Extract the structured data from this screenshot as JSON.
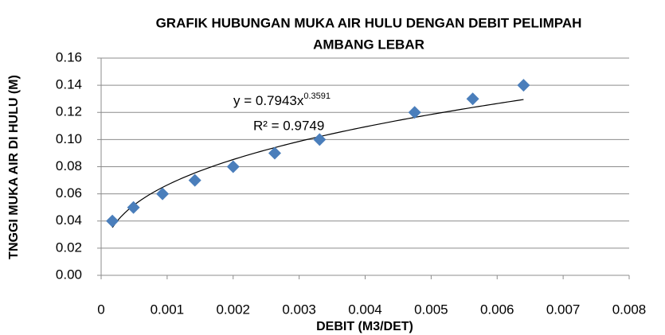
{
  "chart_data": {
    "type": "scatter",
    "title": [
      "GRAFIK HUBUNGAN MUKA AIR HULU DENGAN DEBIT PELIMPAH",
      "AMBANG LEBAR"
    ],
    "x_label": "DEBIT (M3/DET)",
    "y_label": "TNGGI MUKA AIR DI HULU (M)",
    "x": [
      0.00017,
      0.00049,
      0.00093,
      0.00142,
      0.002,
      0.00263,
      0.00331,
      0.00475,
      0.00563,
      0.0064
    ],
    "values": [
      0.04,
      0.05,
      0.06,
      0.07,
      0.08,
      0.09,
      0.1,
      0.12,
      0.13,
      0.14
    ],
    "color": "#4a7ebb",
    "xlim": [
      0,
      0.008
    ],
    "xticks": [
      0,
      0.001,
      0.002,
      0.003,
      0.004,
      0.005,
      0.006,
      0.007,
      0.008
    ],
    "ylim": [
      0,
      0.16
    ],
    "yticks": [
      {
        "value": 0,
        "label": "0.00"
      },
      {
        "value": 0.02,
        "label": "0.02"
      },
      {
        "value": 0.04,
        "label": "0.04"
      },
      {
        "value": 0.06,
        "label": "0.06"
      },
      {
        "value": 0.08,
        "label": "0.08"
      },
      {
        "value": 0.1,
        "label": "0.10"
      },
      {
        "value": 0.12,
        "label": "0.12"
      },
      {
        "value": 0.14,
        "label": "0.14"
      },
      {
        "value": 0.16,
        "label": "0.16"
      }
    ],
    "grid": true,
    "trendline": {
      "coefficient": 0.7943,
      "exponent": 0.3591,
      "equation_label": "y = 0.7943x",
      "exponent_label": "0.3591",
      "r2_label": "R² = 0.9749"
    }
  }
}
